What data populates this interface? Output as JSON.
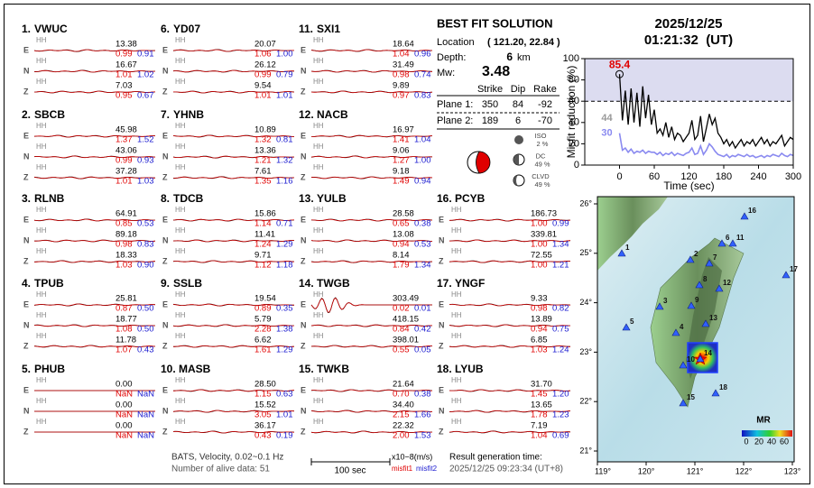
{
  "stations": [
    {
      "number": "1.",
      "code": "VWUC",
      "traces": [
        {
          "component": "E",
          "channel": "HH",
          "amplitude": "13.38",
          "misfit1": "0.99",
          "misfit2": "0.91"
        },
        {
          "component": "N",
          "channel": "HH",
          "amplitude": "16.67",
          "misfit1": "1.01",
          "misfit2": "1.02"
        },
        {
          "component": "Z",
          "channel": "HH",
          "amplitude": "7.03",
          "misfit1": "0.95",
          "misfit2": "0.67"
        }
      ]
    },
    {
      "number": "2.",
      "code": "SBCB",
      "traces": [
        {
          "component": "E",
          "channel": "HH",
          "amplitude": "45.98",
          "misfit1": "1.37",
          "misfit2": "1.52"
        },
        {
          "component": "N",
          "channel": "HH",
          "amplitude": "43.06",
          "misfit1": "0.99",
          "misfit2": "0.93"
        },
        {
          "component": "Z",
          "channel": "HH",
          "amplitude": "37.28",
          "misfit1": "1.01",
          "misfit2": "1.03"
        }
      ]
    },
    {
      "number": "3.",
      "code": "RLNB",
      "traces": [
        {
          "component": "E",
          "channel": "HH",
          "amplitude": "64.91",
          "misfit1": "0.85",
          "misfit2": "0.53"
        },
        {
          "component": "N",
          "channel": "HH",
          "amplitude": "89.18",
          "misfit1": "0.98",
          "misfit2": "0.83"
        },
        {
          "component": "Z",
          "channel": "HH",
          "amplitude": "18.33",
          "misfit1": "1.03",
          "misfit2": "0.90"
        }
      ]
    },
    {
      "number": "4.",
      "code": "TPUB",
      "traces": [
        {
          "component": "E",
          "channel": "HH",
          "amplitude": "25.81",
          "misfit1": "0.87",
          "misfit2": "0.50"
        },
        {
          "component": "N",
          "channel": "HH",
          "amplitude": "18.77",
          "misfit1": "1.08",
          "misfit2": "0.50"
        },
        {
          "component": "Z",
          "channel": "HH",
          "amplitude": "11.78",
          "misfit1": "1.07",
          "misfit2": "0.43"
        }
      ]
    },
    {
      "number": "5.",
      "code": "PHUB",
      "traces": [
        {
          "component": "E",
          "channel": "HH",
          "amplitude": "0.00",
          "misfit1": "NaN",
          "misfit2": "NaN"
        },
        {
          "component": "N",
          "channel": "HH",
          "amplitude": "0.00",
          "misfit1": "NaN",
          "misfit2": "NaN"
        },
        {
          "component": "Z",
          "channel": "HH",
          "amplitude": "0.00",
          "misfit1": "NaN",
          "misfit2": "NaN"
        }
      ]
    },
    {
      "number": "6.",
      "code": "YD07",
      "traces": [
        {
          "component": "E",
          "channel": "HH",
          "amplitude": "20.07",
          "misfit1": "1.06",
          "misfit2": "1.00"
        },
        {
          "component": "N",
          "channel": "HH",
          "amplitude": "26.12",
          "misfit1": "0.99",
          "misfit2": "0.79"
        },
        {
          "component": "Z",
          "channel": "HH",
          "amplitude": "9.54",
          "misfit1": "1.01",
          "misfit2": "1.01"
        }
      ]
    },
    {
      "number": "7.",
      "code": "YHNB",
      "traces": [
        {
          "component": "E",
          "channel": "HH",
          "amplitude": "10.89",
          "misfit1": "1.32",
          "misfit2": "0.81"
        },
        {
          "component": "N",
          "channel": "HH",
          "amplitude": "13.36",
          "misfit1": "1.21",
          "misfit2": "1.32"
        },
        {
          "component": "Z",
          "channel": "HH",
          "amplitude": "7.61",
          "misfit1": "1.35",
          "misfit2": "1.16"
        }
      ]
    },
    {
      "number": "8.",
      "code": "TDCB",
      "traces": [
        {
          "component": "E",
          "channel": "HH",
          "amplitude": "15.86",
          "misfit1": "1.14",
          "misfit2": "0.71"
        },
        {
          "component": "N",
          "channel": "HH",
          "amplitude": "11.41",
          "misfit1": "1.24",
          "misfit2": "1.29"
        },
        {
          "component": "Z",
          "channel": "HH",
          "amplitude": "9.71",
          "misfit1": "1.12",
          "misfit2": "1.18"
        }
      ]
    },
    {
      "number": "9.",
      "code": "SSLB",
      "traces": [
        {
          "component": "E",
          "channel": "HH",
          "amplitude": "19.54",
          "misfit1": "0.89",
          "misfit2": "0.35"
        },
        {
          "component": "N",
          "channel": "HH",
          "amplitude": "5.79",
          "misfit1": "2.28",
          "misfit2": "1.38"
        },
        {
          "component": "Z",
          "channel": "HH",
          "amplitude": "6.62",
          "misfit1": "1.61",
          "misfit2": "1.29"
        }
      ]
    },
    {
      "number": "10.",
      "code": "MASB",
      "traces": [
        {
          "component": "E",
          "channel": "HH",
          "amplitude": "28.50",
          "misfit1": "1.15",
          "misfit2": "0.63"
        },
        {
          "component": "N",
          "channel": "HH",
          "amplitude": "15.52",
          "misfit1": "3.05",
          "misfit2": "1.01"
        },
        {
          "component": "Z",
          "channel": "HH",
          "amplitude": "36.17",
          "misfit1": "0.43",
          "misfit2": "0.19"
        }
      ]
    },
    {
      "number": "11.",
      "code": "SXI1",
      "traces": [
        {
          "component": "E",
          "channel": "HH",
          "amplitude": "18.64",
          "misfit1": "1.04",
          "misfit2": "0.96"
        },
        {
          "component": "N",
          "channel": "HH",
          "amplitude": "31.49",
          "misfit1": "0.98",
          "misfit2": "0.74"
        },
        {
          "component": "Z",
          "channel": "HH",
          "amplitude": "9.89",
          "misfit1": "0.97",
          "misfit2": "0.83"
        }
      ]
    },
    {
      "number": "12.",
      "code": "NACB",
      "traces": [
        {
          "component": "E",
          "channel": "HH",
          "amplitude": "16.97",
          "misfit1": "1.41",
          "misfit2": "1.04"
        },
        {
          "component": "N",
          "channel": "HH",
          "amplitude": "9.06",
          "misfit1": "1.27",
          "misfit2": "1.00"
        },
        {
          "component": "Z",
          "channel": "HH",
          "amplitude": "9.18",
          "misfit1": "1.49",
          "misfit2": "0.94"
        }
      ]
    },
    {
      "number": "13.",
      "code": "YULB",
      "traces": [
        {
          "component": "E",
          "channel": "HH",
          "amplitude": "28.58",
          "misfit1": "0.65",
          "misfit2": "0.38"
        },
        {
          "component": "N",
          "channel": "HH",
          "amplitude": "13.08",
          "misfit1": "0.94",
          "misfit2": "0.53"
        },
        {
          "component": "Z",
          "channel": "HH",
          "amplitude": "8.14",
          "misfit1": "1.79",
          "misfit2": "1.34"
        }
      ]
    },
    {
      "number": "14.",
      "code": "TWGB",
      "traces": [
        {
          "component": "E",
          "channel": "HH",
          "amplitude": "303.49",
          "misfit1": "0.02",
          "misfit2": "0.01"
        },
        {
          "component": "N",
          "channel": "HH",
          "amplitude": "418.15",
          "misfit1": "0.84",
          "misfit2": "0.42"
        },
        {
          "component": "Z",
          "channel": "HH",
          "amplitude": "398.01",
          "misfit1": "0.55",
          "misfit2": "0.05"
        }
      ]
    },
    {
      "number": "15.",
      "code": "TWKB",
      "traces": [
        {
          "component": "E",
          "channel": "HH",
          "amplitude": "21.64",
          "misfit1": "0.70",
          "misfit2": "0.38"
        },
        {
          "component": "N",
          "channel": "HH",
          "amplitude": "34.40",
          "misfit1": "2.15",
          "misfit2": "1.66"
        },
        {
          "component": "Z",
          "channel": "HH",
          "amplitude": "22.32",
          "misfit1": "2.00",
          "misfit2": "1.53"
        }
      ]
    },
    {
      "number": "16.",
      "code": "PCYB",
      "traces": [
        {
          "component": "E",
          "channel": "HH",
          "amplitude": "186.73",
          "misfit1": "1.00",
          "misfit2": "0.99"
        },
        {
          "component": "N",
          "channel": "HH",
          "amplitude": "339.81",
          "misfit1": "1.00",
          "misfit2": "1.34"
        },
        {
          "component": "Z",
          "channel": "HH",
          "amplitude": "72.55",
          "misfit1": "1.00",
          "misfit2": "1.21"
        }
      ]
    },
    {
      "number": "17.",
      "code": "YNGF",
      "traces": [
        {
          "component": "E",
          "channel": "HH",
          "amplitude": "9.33",
          "misfit1": "0.98",
          "misfit2": "0.82"
        },
        {
          "component": "N",
          "channel": "HH",
          "amplitude": "13.89",
          "misfit1": "0.94",
          "misfit2": "0.75"
        },
        {
          "component": "Z",
          "channel": "HH",
          "amplitude": "6.85",
          "misfit1": "1.03",
          "misfit2": "1.24"
        }
      ]
    },
    {
      "number": "18.",
      "code": "LYUB",
      "traces": [
        {
          "component": "E",
          "channel": "HH",
          "amplitude": "31.70",
          "misfit1": "1.45",
          "misfit2": "1.20"
        },
        {
          "component": "N",
          "channel": "HH",
          "amplitude": "13.65",
          "misfit1": "1.78",
          "misfit2": "1.23"
        },
        {
          "component": "Z",
          "channel": "HH",
          "amplitude": "7.19",
          "misfit1": "1.04",
          "misfit2": "0.69"
        }
      ]
    }
  ],
  "solution": {
    "title": "BEST FIT SOLUTION",
    "location_label": "Location",
    "location": "( 121.20, 22.84 )",
    "depth_label": "Depth:",
    "depth": "6",
    "depth_unit": "km",
    "mw_label": "Mw:",
    "mw": "3.48",
    "columns": [
      "Strike",
      "Dip",
      "Rake"
    ],
    "planes": [
      {
        "label": "Plane 1:",
        "values": [
          350,
          84,
          -92
        ]
      },
      {
        "label": "Plane 2:",
        "values": [
          189,
          6,
          -70
        ]
      }
    ],
    "components": [
      {
        "label": "ISO",
        "percent": "2 %"
      },
      {
        "label": "DC",
        "percent": "49 %"
      },
      {
        "label": "CLVD",
        "percent": "49 %"
      }
    ]
  },
  "event": {
    "date": "2025/12/25",
    "time": "01:21:32  (UT)"
  },
  "chart_data": {
    "type": "line",
    "ylabel": "Misfit reduction (%)",
    "xlabel": "Time (sec)",
    "xlim": [
      -60,
      300
    ],
    "xticks": [
      0,
      60,
      120,
      180,
      240,
      300
    ],
    "ylim": [
      0,
      100
    ],
    "yticks": [
      0,
      20,
      40,
      60,
      80,
      100
    ],
    "reference_line": 60,
    "x": [
      0,
      5,
      10,
      15,
      20,
      25,
      30,
      35,
      40,
      45,
      50,
      55,
      60,
      65,
      70,
      75,
      80,
      85,
      90,
      95,
      100,
      105,
      110,
      115,
      120,
      125,
      130,
      135,
      140,
      145,
      150,
      155,
      160,
      165,
      170,
      175,
      180,
      185,
      190,
      195,
      200,
      205,
      210,
      215,
      220,
      225,
      230,
      235,
      240,
      245,
      250,
      255,
      260,
      265,
      270,
      275,
      280,
      285,
      290,
      295,
      300
    ],
    "series": [
      {
        "color": "#000000",
        "values": [
          85.4,
          42,
          70,
          38,
          72,
          40,
          68,
          36,
          74,
          44,
          66,
          38,
          52,
          30,
          34,
          28,
          40,
          26,
          36,
          24,
          30,
          28,
          22,
          26,
          30,
          42,
          24,
          28,
          46,
          22,
          35,
          48,
          38,
          44,
          30,
          26,
          20,
          24,
          18,
          22,
          16,
          20,
          24,
          18,
          22,
          20,
          24,
          18,
          22,
          26,
          20,
          24,
          18,
          22,
          20,
          24,
          28,
          18,
          22,
          26,
          24
        ]
      },
      {
        "color": "#8a8af0",
        "values": [
          30,
          14,
          16,
          12,
          15,
          11,
          13,
          12,
          14,
          11,
          13,
          12,
          12,
          10,
          12,
          9,
          11,
          10,
          12,
          9,
          11,
          10,
          9,
          11,
          12,
          16,
          10,
          11,
          18,
          10,
          14,
          20,
          17,
          13,
          10,
          9,
          8,
          10,
          7,
          9,
          8,
          10,
          9,
          8,
          10,
          8,
          9,
          7,
          8,
          9,
          7,
          9,
          8,
          10,
          9,
          8,
          11,
          9,
          8,
          10,
          9
        ]
      }
    ],
    "annotations": [
      {
        "value": 85.4,
        "label": "85.4",
        "color": "#e00000"
      },
      {
        "value": 44,
        "label": "44",
        "color": "#999999"
      },
      {
        "value": 30,
        "label": "30",
        "color": "#8a8af0"
      }
    ]
  },
  "map": {
    "lon_labels": [
      "119°",
      "120°",
      "121°",
      "122°",
      "123°"
    ],
    "lat_labels": [
      "26°",
      "25°",
      "24°",
      "23°",
      "22°",
      "21°"
    ],
    "station_labels": [
      "1",
      "2",
      "3",
      "4",
      "5",
      "6",
      "7",
      "8",
      "9",
      "10",
      "11",
      "12",
      "13",
      "14",
      "15",
      "16",
      "17",
      "18"
    ],
    "colorbar_title": "MR",
    "colorbar_ticks": [
      "0",
      "20",
      "40",
      "60"
    ]
  },
  "footer": {
    "info": "BATS, Velocity, 0.02~0.1 Hz",
    "alive": "Number of alive data: 51",
    "scale": "100 sec",
    "units": "x10−8(m/s)",
    "misfit1": "misfit1",
    "misfit2": "misfit2",
    "result_label": "Result generation time:",
    "result_time": "2025/12/25 09:23:34 (UT+8)"
  }
}
